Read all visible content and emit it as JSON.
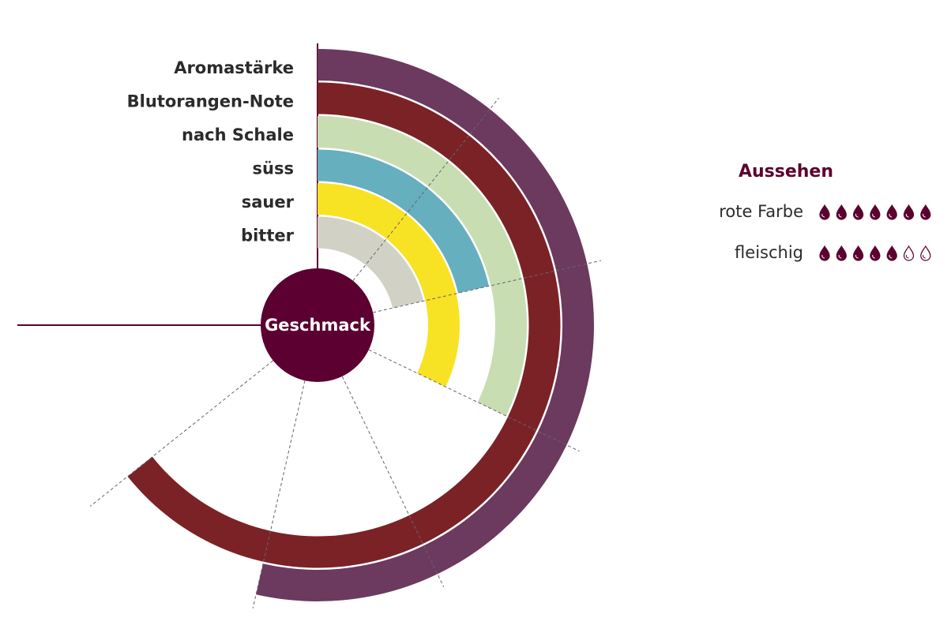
{
  "chart_data": {
    "type": "radial-bar",
    "title": "Geschmack",
    "categories": [
      "Aromastärke",
      "Blutorangen-Note",
      "nach Schale",
      "süss",
      "sauer",
      "bitter"
    ],
    "values": [
      5,
      6,
      3,
      2,
      3,
      2
    ],
    "colors": [
      "#6b3a5e",
      "#7b2227",
      "#c9ddb2",
      "#66afbe",
      "#f8e224",
      "#d1d1c5"
    ],
    "ylim": [
      0,
      7
    ],
    "yticks": [
      0,
      1,
      2,
      3,
      4,
      5,
      6,
      7
    ]
  },
  "appearance": {
    "title": "Aussehen",
    "max": 7,
    "items": [
      {
        "label": "rote Farbe",
        "value": 7
      },
      {
        "label": "fleischig",
        "value": 5
      }
    ]
  }
}
